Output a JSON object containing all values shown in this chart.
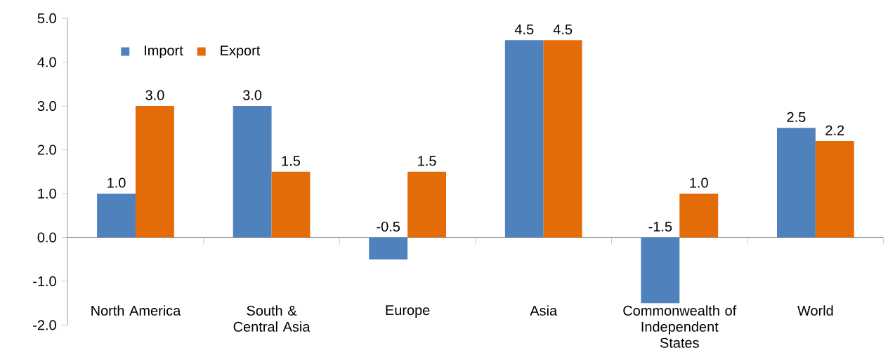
{
  "chart_data": {
    "type": "bar",
    "categories": [
      "North America",
      "South & Central Asia",
      "Europe",
      "Asia",
      "Commonwealth of Independent States",
      "World"
    ],
    "series": [
      {
        "name": "Import",
        "color": "#4f81bd",
        "values": [
          1.0,
          3.0,
          -0.5,
          4.5,
          -1.5,
          2.5
        ],
        "value_labels": [
          "1.0",
          "3.0",
          "-0.5",
          "4.5",
          "-1.5",
          "2.5"
        ]
      },
      {
        "name": "Export",
        "color": "#e36c09",
        "values": [
          3.0,
          1.5,
          1.5,
          4.5,
          1.0,
          2.2
        ],
        "value_labels": [
          "3.0",
          "1.5",
          "1.5",
          "4.5",
          "1.0",
          "2.2"
        ]
      }
    ],
    "ylim": [
      -2,
      5
    ],
    "yticks": [
      {
        "value": -2,
        "label": "-2.0"
      },
      {
        "value": -1,
        "label": "-1.0"
      },
      {
        "value": 0,
        "label": "0.0"
      },
      {
        "value": 1,
        "label": "1.0"
      },
      {
        "value": 2,
        "label": "2.0"
      },
      {
        "value": 3,
        "label": "3.0"
      },
      {
        "value": 4,
        "label": "4.0"
      },
      {
        "value": 5,
        "label": "5.0"
      }
    ],
    "legend": "top left"
  }
}
